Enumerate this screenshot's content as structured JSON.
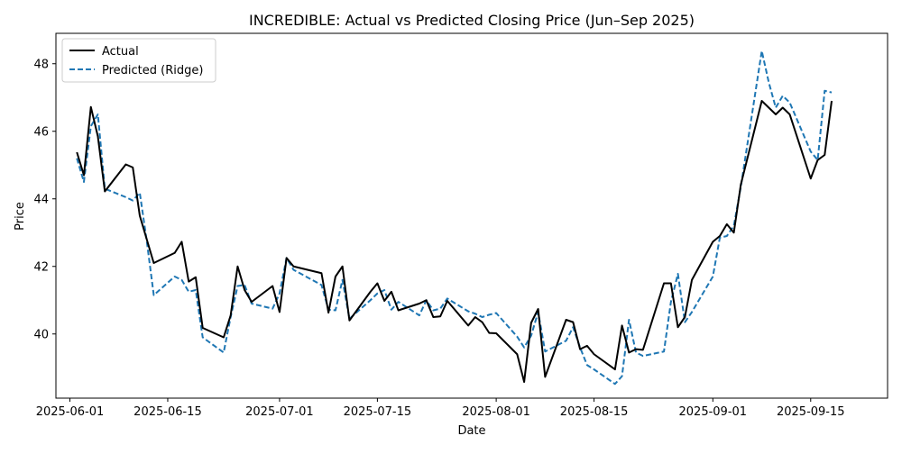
{
  "chart_data": {
    "type": "line",
    "title": "INCREDIBLE: Actual vs Predicted Closing Price (Jun–Sep 2025)",
    "xlabel": "Date",
    "ylabel": "Price",
    "xlim": [
      "2025-05-30",
      "2025-09-26"
    ],
    "ylim": [
      38.1,
      48.9
    ],
    "x_ticks": [
      "2025-06-01",
      "2025-06-15",
      "2025-07-01",
      "2025-07-15",
      "2025-08-01",
      "2025-08-15",
      "2025-09-01",
      "2025-09-15"
    ],
    "y_ticks": [
      40,
      42,
      44,
      46,
      48
    ],
    "grid": false,
    "legend": "top-left",
    "x": [
      "2025-06-02",
      "2025-06-03",
      "2025-06-04",
      "2025-06-05",
      "2025-06-06",
      "2025-06-09",
      "2025-06-10",
      "2025-06-11",
      "2025-06-12",
      "2025-06-13",
      "2025-06-16",
      "2025-06-17",
      "2025-06-18",
      "2025-06-19",
      "2025-06-20",
      "2025-06-23",
      "2025-06-24",
      "2025-06-25",
      "2025-06-26",
      "2025-06-27",
      "2025-06-30",
      "2025-07-01",
      "2025-07-02",
      "2025-07-03",
      "2025-07-07",
      "2025-07-08",
      "2025-07-09",
      "2025-07-10",
      "2025-07-11",
      "2025-07-14",
      "2025-07-15",
      "2025-07-16",
      "2025-07-17",
      "2025-07-18",
      "2025-07-21",
      "2025-07-22",
      "2025-07-23",
      "2025-07-24",
      "2025-07-25",
      "2025-07-28",
      "2025-07-29",
      "2025-07-30",
      "2025-07-31",
      "2025-08-01",
      "2025-08-04",
      "2025-08-05",
      "2025-08-06",
      "2025-08-07",
      "2025-08-08",
      "2025-08-11",
      "2025-08-12",
      "2025-08-13",
      "2025-08-14",
      "2025-08-15",
      "2025-08-18",
      "2025-08-19",
      "2025-08-20",
      "2025-08-21",
      "2025-08-22",
      "2025-08-25",
      "2025-08-26",
      "2025-08-27",
      "2025-08-28",
      "2025-08-29",
      "2025-09-01",
      "2025-09-02",
      "2025-09-03",
      "2025-09-04",
      "2025-09-05",
      "2025-09-08",
      "2025-09-09",
      "2025-09-10",
      "2025-09-11",
      "2025-09-12",
      "2025-09-15",
      "2025-09-16",
      "2025-09-17",
      "2025-09-18"
    ],
    "series": [
      {
        "name": "Actual",
        "color": "#000000",
        "dash": "solid",
        "values": [
          45.38,
          44.7,
          46.72,
          45.85,
          44.22,
          45.02,
          44.93,
          43.5,
          42.8,
          42.1,
          42.4,
          42.73,
          41.55,
          41.68,
          40.18,
          39.9,
          40.55,
          42.0,
          41.3,
          40.95,
          41.42,
          40.65,
          42.25,
          42.0,
          41.8,
          40.63,
          41.7,
          42.0,
          40.4,
          41.25,
          41.5,
          40.98,
          41.25,
          40.7,
          40.9,
          41.0,
          40.5,
          40.52,
          40.98,
          40.25,
          40.5,
          40.35,
          40.03,
          40.02,
          39.4,
          38.58,
          40.33,
          40.74,
          38.73,
          40.42,
          40.35,
          39.55,
          39.65,
          39.4,
          38.95,
          40.25,
          39.45,
          39.55,
          39.53,
          41.5,
          41.5,
          40.2,
          40.5,
          41.6,
          42.73,
          42.9,
          43.25,
          43.0,
          44.42,
          46.9,
          46.7,
          46.5,
          46.7,
          46.5,
          44.6,
          45.15,
          45.3,
          46.9
        ]
      },
      {
        "name": "Predicted (Ridge)",
        "color": "#1f77b4",
        "dash": "dashed",
        "values": [
          45.2,
          44.5,
          46.15,
          46.5,
          44.3,
          44.05,
          43.95,
          44.18,
          42.75,
          41.15,
          41.7,
          41.6,
          41.25,
          41.3,
          39.9,
          39.45,
          40.5,
          41.42,
          41.45,
          40.9,
          40.75,
          41.2,
          42.25,
          41.9,
          41.45,
          40.72,
          40.7,
          41.6,
          40.45,
          41.0,
          41.2,
          41.3,
          40.72,
          40.95,
          40.55,
          41.0,
          40.7,
          40.75,
          41.05,
          40.67,
          40.6,
          40.5,
          40.57,
          40.62,
          39.92,
          39.6,
          39.95,
          40.65,
          39.48,
          39.8,
          40.2,
          39.6,
          39.08,
          38.95,
          38.52,
          38.75,
          40.42,
          39.45,
          39.35,
          39.48,
          40.95,
          41.78,
          40.35,
          40.65,
          41.7,
          42.85,
          42.9,
          43.2,
          44.35,
          48.38,
          47.45,
          46.7,
          47.05,
          46.85,
          45.4,
          45.15,
          47.2,
          47.15
        ]
      }
    ]
  }
}
